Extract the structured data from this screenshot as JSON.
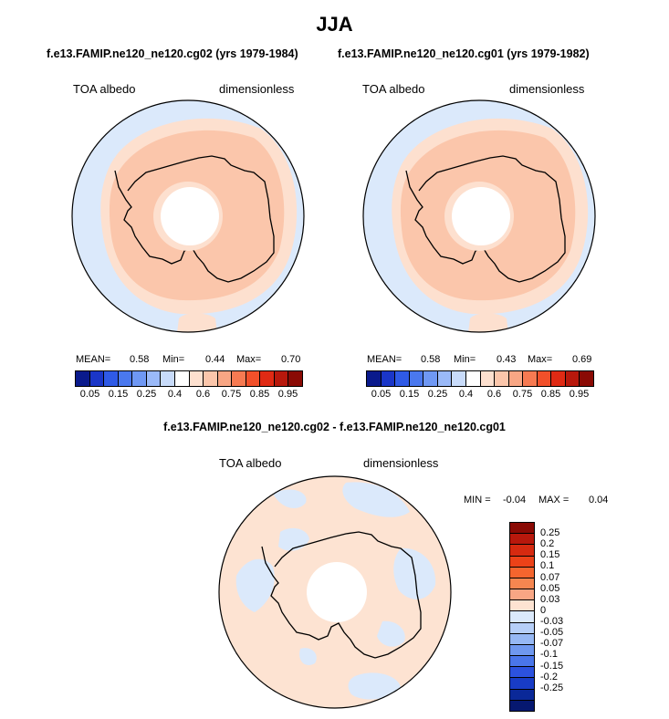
{
  "figure": {
    "title": "JJA",
    "left_subtitle": "f.e13.FAMIP.ne120_ne120.cg02 (yrs 1979-1984)",
    "right_subtitle": "f.e13.FAMIP.ne120_ne120.cg01 (yrs 1979-1982)",
    "diff_title": "f.e13.FAMIP.ne120_ne120.cg02 - f.e13.FAMIP.ne120_ne120.cg01"
  },
  "panels": {
    "left": {
      "var_label": "TOA albedo",
      "units_label": "dimensionless",
      "mean_label": "MEAN=",
      "mean_value": "0.58",
      "min_label": "Min=",
      "min_value": "0.44",
      "max_label": "Max=",
      "max_value": "0.70"
    },
    "right": {
      "var_label": "TOA albedo",
      "units_label": "dimensionless",
      "mean_label": "MEAN=",
      "mean_value": "0.58",
      "min_label": "Min=",
      "min_value": "0.43",
      "max_label": "Max=",
      "max_value": "0.69"
    },
    "diff": {
      "var_label": "TOA albedo",
      "units_label": "dimensionless",
      "min_label": "MIN =",
      "min_value": "-0.04",
      "max_label": "MAX =",
      "max_value": "0.04"
    }
  },
  "colorbar_main": {
    "colors": [
      "#0a1a8c",
      "#1a36c8",
      "#2f5ae6",
      "#4a78ee",
      "#6f98f4",
      "#9ab9f8",
      "#c8dbfa",
      "#ffffff",
      "#fde0cf",
      "#fbc6ab",
      "#f8a684",
      "#f67a52",
      "#f2502a",
      "#e02a14",
      "#b8180c",
      "#8a0a04"
    ],
    "ticks": [
      "0.05",
      "0.15",
      "0.25",
      "0.4",
      "0.6",
      "0.75",
      "0.85",
      "0.95"
    ]
  },
  "colorbar_diff": {
    "colors": [
      "#8a0a04",
      "#b8180c",
      "#d62a10",
      "#ec4218",
      "#f5652e",
      "#f68650",
      "#f8a684",
      "#fde3d2",
      "#dbe9fb",
      "#b6cff8",
      "#96b8f4",
      "#6f98ef",
      "#4a76ea",
      "#2c52df",
      "#183cc6",
      "#0a2898",
      "#061870"
    ],
    "ticks": [
      "0.25",
      "0.2",
      "0.15",
      "0.1",
      "0.07",
      "0.05",
      "0.03",
      "0",
      "-0.03",
      "-0.05",
      "-0.07",
      "-0.1",
      "-0.15",
      "-0.2",
      "-0.25"
    ]
  }
}
